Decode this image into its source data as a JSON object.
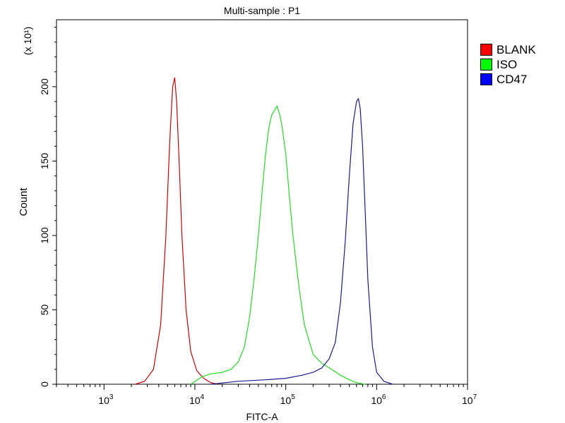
{
  "chart_data": {
    "type": "line",
    "title": "Multi-sample : P1",
    "xlabel": "FITC-A",
    "ylabel": "Count",
    "y_multiplier": "(x 10¹)",
    "x_scale": "log",
    "xlim": [
      300,
      10000000
    ],
    "ylim": [
      0,
      245
    ],
    "x_ticks": [
      {
        "value": 1000,
        "base": "10",
        "exp": "3"
      },
      {
        "value": 10000,
        "base": "10",
        "exp": "4"
      },
      {
        "value": 100000,
        "base": "10",
        "exp": "5"
      },
      {
        "value": 1000000,
        "base": "10",
        "exp": "6"
      },
      {
        "value": 10000000,
        "base": "10",
        "exp": "7"
      }
    ],
    "y_ticks": [
      0,
      50,
      100,
      150,
      200
    ],
    "legend_position": "right",
    "series": [
      {
        "name": "BLANK",
        "color": "#cc0000",
        "legend_color": "#ff0000",
        "x": [
          2200,
          2800,
          3500,
          4200,
          4800,
          5300,
          5700,
          6000,
          6300,
          6700,
          7200,
          8000,
          9000,
          10500,
          12500,
          15000,
          18000
        ],
        "y": [
          0,
          2,
          10,
          40,
          100,
          165,
          200,
          206,
          190,
          150,
          100,
          50,
          22,
          9,
          4,
          1,
          0
        ]
      },
      {
        "name": "ISO",
        "color": "#22dd22",
        "legend_color": "#00ff00",
        "x": [
          9000,
          12000,
          15000,
          20000,
          25000,
          30000,
          35000,
          40000,
          45000,
          50000,
          55000,
          60000,
          65000,
          70000,
          75000,
          80000,
          85000,
          90000,
          100000,
          110000,
          120000,
          140000,
          160000,
          200000,
          250000,
          320000,
          400000,
          500000,
          600000,
          750000
        ],
        "y": [
          0,
          5,
          7,
          8,
          10,
          15,
          25,
          45,
          72,
          100,
          130,
          155,
          172,
          181,
          184,
          187,
          182,
          175,
          155,
          125,
          100,
          65,
          40,
          20,
          14,
          10,
          6,
          3,
          1,
          0
        ]
      },
      {
        "name": "CD47",
        "color": "#1a1a8c",
        "legend_color": "#0000ff",
        "x": [
          15000,
          30000,
          60000,
          100000,
          150000,
          200000,
          250000,
          300000,
          350000,
          400000,
          450000,
          500000,
          550000,
          600000,
          630000,
          660000,
          700000,
          750000,
          800000,
          900000,
          1000000,
          1200000,
          1500000
        ],
        "y": [
          0,
          2,
          3,
          4,
          6,
          8,
          11,
          17,
          28,
          55,
          95,
          140,
          175,
          190,
          192,
          185,
          160,
          115,
          70,
          25,
          8,
          2,
          0
        ]
      }
    ]
  }
}
